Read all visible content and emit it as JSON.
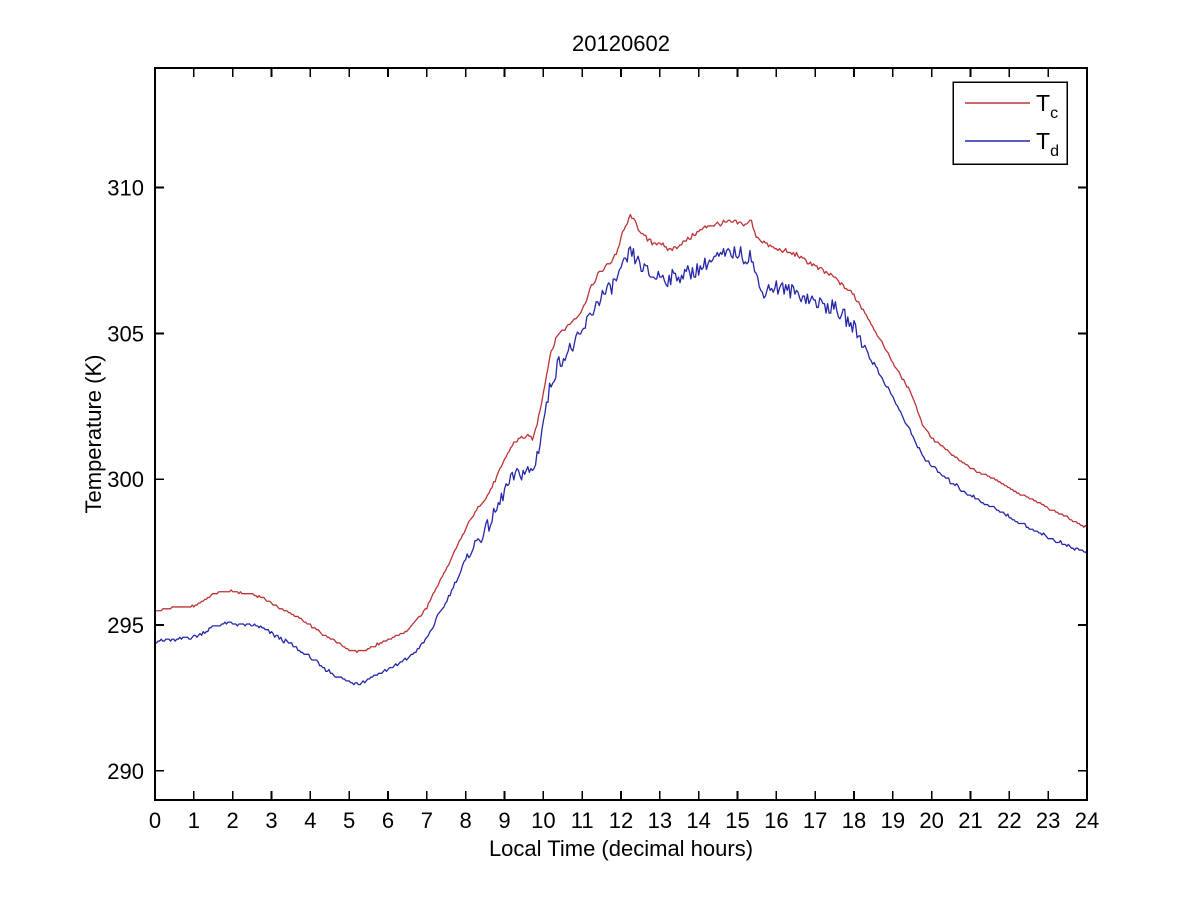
{
  "chart_data": {
    "type": "line",
    "title": "20120602",
    "xlabel": "Local Time (decimal hours)",
    "ylabel": "Temperature (K)",
    "xlim": [
      0,
      24
    ],
    "ylim": [
      289.0,
      314.1
    ],
    "xticks": [
      0,
      1,
      2,
      3,
      4,
      5,
      6,
      7,
      8,
      9,
      10,
      11,
      12,
      13,
      14,
      15,
      16,
      17,
      18,
      19,
      20,
      21,
      22,
      23,
      24
    ],
    "yticks": [
      290,
      295,
      300,
      305,
      310
    ],
    "grid": false,
    "box": true,
    "axis_color": "#000000",
    "background_color": "#ffffff",
    "legend": {
      "position": "top-right",
      "border_color": "#000000",
      "items": [
        {
          "label": "T",
          "subscript": "c",
          "color": "#bd3335"
        },
        {
          "label": "T",
          "subscript": "d",
          "color": "#2626a8"
        }
      ]
    },
    "sample_step_hours": 0.04,
    "quantize_step_K": 0.065,
    "series": [
      {
        "name": "Tc",
        "color": "#bd3335",
        "noise": {
          "base": 0.025,
          "midday": 0.055,
          "window": [
            9,
            18
          ]
        },
        "keypoints": [
          [
            0,
            295.5
          ],
          [
            0.5,
            295.6
          ],
          [
            1,
            295.65
          ],
          [
            1.25,
            295.85
          ],
          [
            1.5,
            296.05
          ],
          [
            1.75,
            296.15
          ],
          [
            2,
            296.15
          ],
          [
            2.25,
            296.1
          ],
          [
            2.5,
            296.05
          ],
          [
            2.75,
            295.95
          ],
          [
            3,
            295.75
          ],
          [
            3.25,
            295.55
          ],
          [
            3.5,
            295.4
          ],
          [
            3.75,
            295.2
          ],
          [
            4,
            295.0
          ],
          [
            4.25,
            294.75
          ],
          [
            4.5,
            294.55
          ],
          [
            4.75,
            294.35
          ],
          [
            5,
            294.15
          ],
          [
            5.25,
            294.1
          ],
          [
            5.5,
            294.2
          ],
          [
            6,
            294.5
          ],
          [
            6.25,
            294.65
          ],
          [
            6.5,
            294.8
          ],
          [
            6.75,
            295.2
          ],
          [
            7,
            295.6
          ],
          [
            7.25,
            296.3
          ],
          [
            7.5,
            296.9
          ],
          [
            7.75,
            297.6
          ],
          [
            8,
            298.3
          ],
          [
            8.25,
            298.9
          ],
          [
            8.5,
            299.3
          ],
          [
            8.75,
            299.9
          ],
          [
            9,
            300.65
          ],
          [
            9.25,
            301.3
          ],
          [
            9.5,
            301.45
          ],
          [
            9.75,
            301.4
          ],
          [
            9.9,
            302.3
          ],
          [
            10,
            303.0
          ],
          [
            10.2,
            304.4
          ],
          [
            10.4,
            305.0
          ],
          [
            10.6,
            305.2
          ],
          [
            10.8,
            305.5
          ],
          [
            11,
            305.8
          ],
          [
            11.2,
            306.5
          ],
          [
            11.45,
            307.1
          ],
          [
            11.7,
            307.4
          ],
          [
            11.9,
            307.8
          ],
          [
            12,
            308.3
          ],
          [
            12.25,
            309.05
          ],
          [
            12.4,
            308.7
          ],
          [
            12.6,
            308.3
          ],
          [
            12.8,
            308.1
          ],
          [
            13,
            308.1
          ],
          [
            13.2,
            307.85
          ],
          [
            13.4,
            307.95
          ],
          [
            13.6,
            308.1
          ],
          [
            13.8,
            308.3
          ],
          [
            14,
            308.5
          ],
          [
            14.25,
            308.7
          ],
          [
            14.5,
            308.75
          ],
          [
            14.75,
            308.8
          ],
          [
            15,
            308.8
          ],
          [
            15.2,
            308.7
          ],
          [
            15.35,
            308.9
          ],
          [
            15.45,
            308.4
          ],
          [
            15.6,
            308.2
          ],
          [
            15.8,
            308.0
          ],
          [
            16,
            307.9
          ],
          [
            16.25,
            307.8
          ],
          [
            16.5,
            307.7
          ],
          [
            16.75,
            307.5
          ],
          [
            17,
            307.3
          ],
          [
            17.25,
            307.1
          ],
          [
            17.5,
            306.9
          ],
          [
            17.75,
            306.6
          ],
          [
            18,
            306.3
          ],
          [
            18.25,
            305.8
          ],
          [
            18.5,
            305.2
          ],
          [
            18.75,
            304.6
          ],
          [
            19,
            304.0
          ],
          [
            19.25,
            303.45
          ],
          [
            19.5,
            302.9
          ],
          [
            19.75,
            301.9
          ],
          [
            20,
            301.4
          ],
          [
            20.25,
            301.15
          ],
          [
            20.5,
            300.85
          ],
          [
            20.75,
            300.6
          ],
          [
            21,
            300.4
          ],
          [
            21.25,
            300.2
          ],
          [
            21.5,
            300.1
          ],
          [
            21.75,
            299.9
          ],
          [
            22,
            299.7
          ],
          [
            22.25,
            299.5
          ],
          [
            22.5,
            299.35
          ],
          [
            22.75,
            299.2
          ],
          [
            23,
            299.0
          ],
          [
            23.25,
            298.85
          ],
          [
            23.5,
            298.7
          ],
          [
            23.75,
            298.5
          ],
          [
            24,
            298.35
          ]
        ]
      },
      {
        "name": "Td",
        "color": "#2626a8",
        "noise": {
          "base": 0.06,
          "midday": 0.2,
          "window": [
            8.5,
            18
          ]
        },
        "keypoints": [
          [
            0,
            294.45
          ],
          [
            0.5,
            294.5
          ],
          [
            1,
            294.6
          ],
          [
            1.25,
            294.75
          ],
          [
            1.5,
            294.95
          ],
          [
            1.75,
            295.05
          ],
          [
            2,
            295.05
          ],
          [
            2.25,
            295.0
          ],
          [
            2.5,
            295.0
          ],
          [
            2.75,
            294.9
          ],
          [
            3,
            294.7
          ],
          [
            3.25,
            294.5
          ],
          [
            3.5,
            294.35
          ],
          [
            3.75,
            294.1
          ],
          [
            4,
            293.9
          ],
          [
            4.25,
            293.6
          ],
          [
            4.5,
            293.4
          ],
          [
            4.75,
            293.2
          ],
          [
            5,
            293.05
          ],
          [
            5.25,
            293.0
          ],
          [
            5.5,
            293.15
          ],
          [
            6,
            293.5
          ],
          [
            6.25,
            293.65
          ],
          [
            6.5,
            293.85
          ],
          [
            6.75,
            294.15
          ],
          [
            7,
            294.55
          ],
          [
            7.25,
            295.2
          ],
          [
            7.5,
            295.8
          ],
          [
            7.75,
            296.5
          ],
          [
            8,
            297.2
          ],
          [
            8.25,
            297.8
          ],
          [
            8.5,
            298.2
          ],
          [
            8.75,
            298.8
          ],
          [
            9,
            299.6
          ],
          [
            9.25,
            300.1
          ],
          [
            9.5,
            300.25
          ],
          [
            9.75,
            300.3
          ],
          [
            9.9,
            301.2
          ],
          [
            10,
            302.0
          ],
          [
            10.2,
            303.3
          ],
          [
            10.4,
            304.0
          ],
          [
            10.6,
            304.3
          ],
          [
            10.8,
            304.6
          ],
          [
            11,
            305.0
          ],
          [
            11.2,
            305.6
          ],
          [
            11.45,
            306.2
          ],
          [
            11.7,
            306.5
          ],
          [
            11.9,
            306.9
          ],
          [
            12,
            307.1
          ],
          [
            12.25,
            307.8
          ],
          [
            12.4,
            307.5
          ],
          [
            12.6,
            307.2
          ],
          [
            12.8,
            306.95
          ],
          [
            13,
            307.0
          ],
          [
            13.2,
            306.85
          ],
          [
            13.4,
            306.95
          ],
          [
            13.6,
            307.0
          ],
          [
            13.8,
            307.1
          ],
          [
            14,
            307.2
          ],
          [
            14.25,
            307.45
          ],
          [
            14.5,
            307.6
          ],
          [
            14.75,
            307.7
          ],
          [
            15,
            307.8
          ],
          [
            15.2,
            307.6
          ],
          [
            15.35,
            307.7
          ],
          [
            15.45,
            307.1
          ],
          [
            15.6,
            306.4
          ],
          [
            15.8,
            306.55
          ],
          [
            16,
            306.6
          ],
          [
            16.25,
            306.5
          ],
          [
            16.5,
            306.4
          ],
          [
            16.75,
            306.25
          ],
          [
            17,
            306.1
          ],
          [
            17.25,
            305.95
          ],
          [
            17.5,
            305.85
          ],
          [
            17.75,
            305.55
          ],
          [
            18,
            305.2
          ],
          [
            18.25,
            304.6
          ],
          [
            18.5,
            304.0
          ],
          [
            18.75,
            303.4
          ],
          [
            19,
            302.8
          ],
          [
            19.25,
            302.15
          ],
          [
            19.5,
            301.5
          ],
          [
            19.75,
            300.85
          ],
          [
            20,
            300.45
          ],
          [
            20.25,
            300.15
          ],
          [
            20.5,
            299.9
          ],
          [
            20.75,
            299.65
          ],
          [
            21,
            299.45
          ],
          [
            21.25,
            299.25
          ],
          [
            21.5,
            299.1
          ],
          [
            21.75,
            298.9
          ],
          [
            22,
            298.7
          ],
          [
            22.25,
            298.5
          ],
          [
            22.5,
            298.35
          ],
          [
            22.75,
            298.2
          ],
          [
            23,
            298.0
          ],
          [
            23.25,
            297.85
          ],
          [
            23.5,
            297.7
          ],
          [
            23.75,
            297.6
          ],
          [
            24,
            297.5
          ]
        ]
      }
    ]
  }
}
